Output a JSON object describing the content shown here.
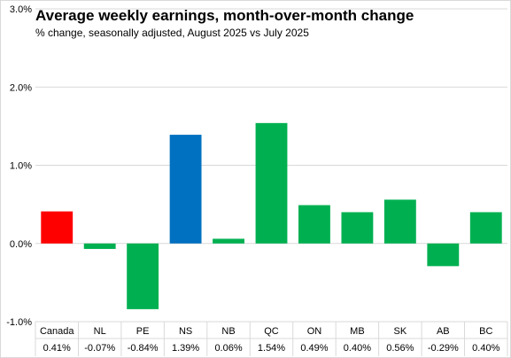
{
  "chart_data": {
    "type": "bar",
    "title": "Average weekly earnings, month-over-month change",
    "subtitle": "% change, seasonally adjusted, August 2025 vs July 2025",
    "categories": [
      "Canada",
      "NL",
      "PE",
      "NS",
      "NB",
      "QC",
      "ON",
      "MB",
      "SK",
      "AB",
      "BC"
    ],
    "values": [
      0.41,
      -0.07,
      -0.84,
      1.39,
      0.06,
      1.54,
      0.49,
      0.4,
      0.56,
      -0.29,
      0.4
    ],
    "value_labels": [
      "0.41%",
      "-0.07%",
      "-0.84%",
      "1.39%",
      "0.06%",
      "1.54%",
      "0.49%",
      "0.40%",
      "0.56%",
      "-0.29%",
      "0.40%"
    ],
    "colors": [
      "#ff0000",
      "#00b050",
      "#00b050",
      "#0070c0",
      "#00b050",
      "#00b050",
      "#00b050",
      "#00b050",
      "#00b050",
      "#00b050",
      "#00b050"
    ],
    "ylim": [
      -1.0,
      3.0
    ],
    "yticks": [
      -1.0,
      0.0,
      1.0,
      2.0,
      3.0
    ],
    "ytick_labels": [
      "-1.0%",
      "0.0%",
      "1.0%",
      "2.0%",
      "3.0%"
    ],
    "grid": true,
    "gridline_color": "#d9d9d9",
    "data_table_below": true
  }
}
